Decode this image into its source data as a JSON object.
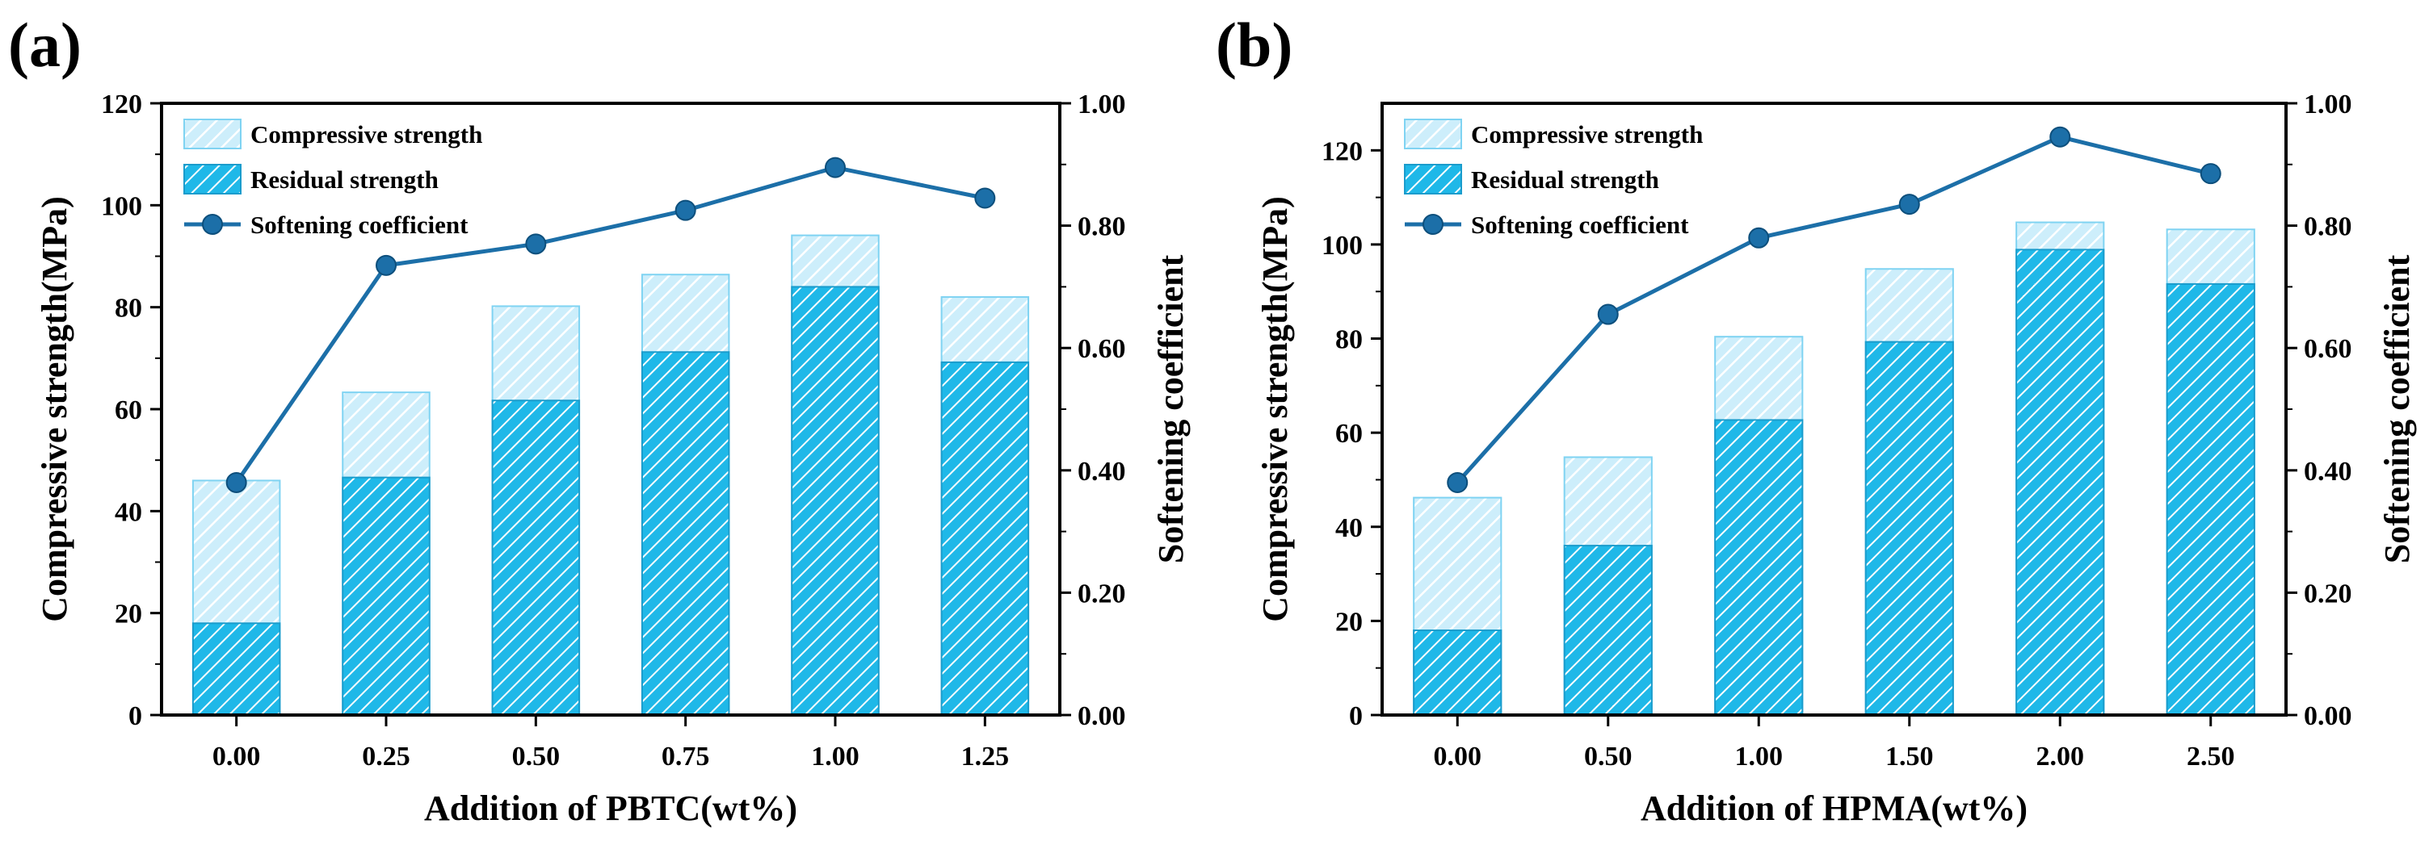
{
  "colors": {
    "compressive_fill": "#cdeefb",
    "compressive_stroke": "#7fd3f2",
    "residual_fill": "#1fb8e8",
    "residual_stroke": "#1a9ccc",
    "hatch": "#ffffff",
    "line": "#1c6fa8",
    "marker": "#1c6fa8",
    "axis": "#000000"
  },
  "legend": {
    "compressive": "Compressive strength",
    "residual": "Residual strength",
    "softening": "Softening coefficient"
  },
  "chart_data": [
    {
      "type": "bar",
      "panel_label": "(a)",
      "title": "",
      "xlabel": "Addition of PBTC(wt%)",
      "ylabel": "Compressive strength(MPa)",
      "y2label": "Softening coefficient",
      "categories": [
        "0.00",
        "0.25",
        "0.50",
        "0.75",
        "1.00",
        "1.25"
      ],
      "ylim": [
        0,
        120
      ],
      "yticks": [
        0,
        20,
        40,
        60,
        80,
        100,
        120
      ],
      "ytick_labels": [
        "0",
        "20",
        "40",
        "60",
        "80",
        "100",
        "120"
      ],
      "y2lim": [
        0,
        1
      ],
      "y2ticks": [
        0,
        0.2,
        0.4,
        0.6,
        0.8,
        1.0
      ],
      "y2tick_labels": [
        "0.00",
        "0.20",
        "0.40",
        "0.60",
        "0.80",
        "1.00"
      ],
      "series": [
        {
          "name": "Compressive strength",
          "kind": "bar",
          "values": [
            46,
            63.3,
            80.2,
            86.4,
            94.1,
            82
          ]
        },
        {
          "name": "Residual strength",
          "kind": "bar",
          "values": [
            18,
            46.6,
            61.7,
            71.2,
            84,
            69.2
          ]
        },
        {
          "name": "Softening coefficient",
          "kind": "line",
          "axis": "right",
          "values": [
            0.38,
            0.735,
            0.77,
            0.825,
            0.895,
            0.845
          ]
        }
      ],
      "legend_position": "top-left"
    },
    {
      "type": "bar",
      "panel_label": "(b)",
      "title": "",
      "xlabel": "Addition of HPMA(wt%)",
      "ylabel": "Compressive strength(MPa)",
      "y2label": "Softening coefficient",
      "categories": [
        "0.00",
        "0.50",
        "1.00",
        "1.50",
        "2.00",
        "2.50"
      ],
      "ylim": [
        0,
        130
      ],
      "yticks": [
        0,
        20,
        40,
        60,
        80,
        100,
        120
      ],
      "ytick_labels": [
        "0",
        "20",
        "40",
        "60",
        "80",
        "100",
        "120"
      ],
      "y2lim": [
        0,
        1
      ],
      "y2ticks": [
        0,
        0.2,
        0.4,
        0.6,
        0.8,
        1.0
      ],
      "y2tick_labels": [
        "0.00",
        "0.20",
        "0.40",
        "0.60",
        "0.80",
        "1.00"
      ],
      "series": [
        {
          "name": "Compressive strength",
          "kind": "bar",
          "values": [
            46.2,
            54.8,
            80.4,
            94.8,
            104.7,
            103.2
          ]
        },
        {
          "name": "Residual strength",
          "kind": "bar",
          "values": [
            18,
            36,
            62.7,
            79.3,
            98.9,
            91.6
          ]
        },
        {
          "name": "Softening coefficient",
          "kind": "line",
          "axis": "right",
          "values": [
            0.38,
            0.655,
            0.78,
            0.835,
            0.945,
            0.885
          ]
        }
      ],
      "legend_position": "top-left"
    }
  ]
}
